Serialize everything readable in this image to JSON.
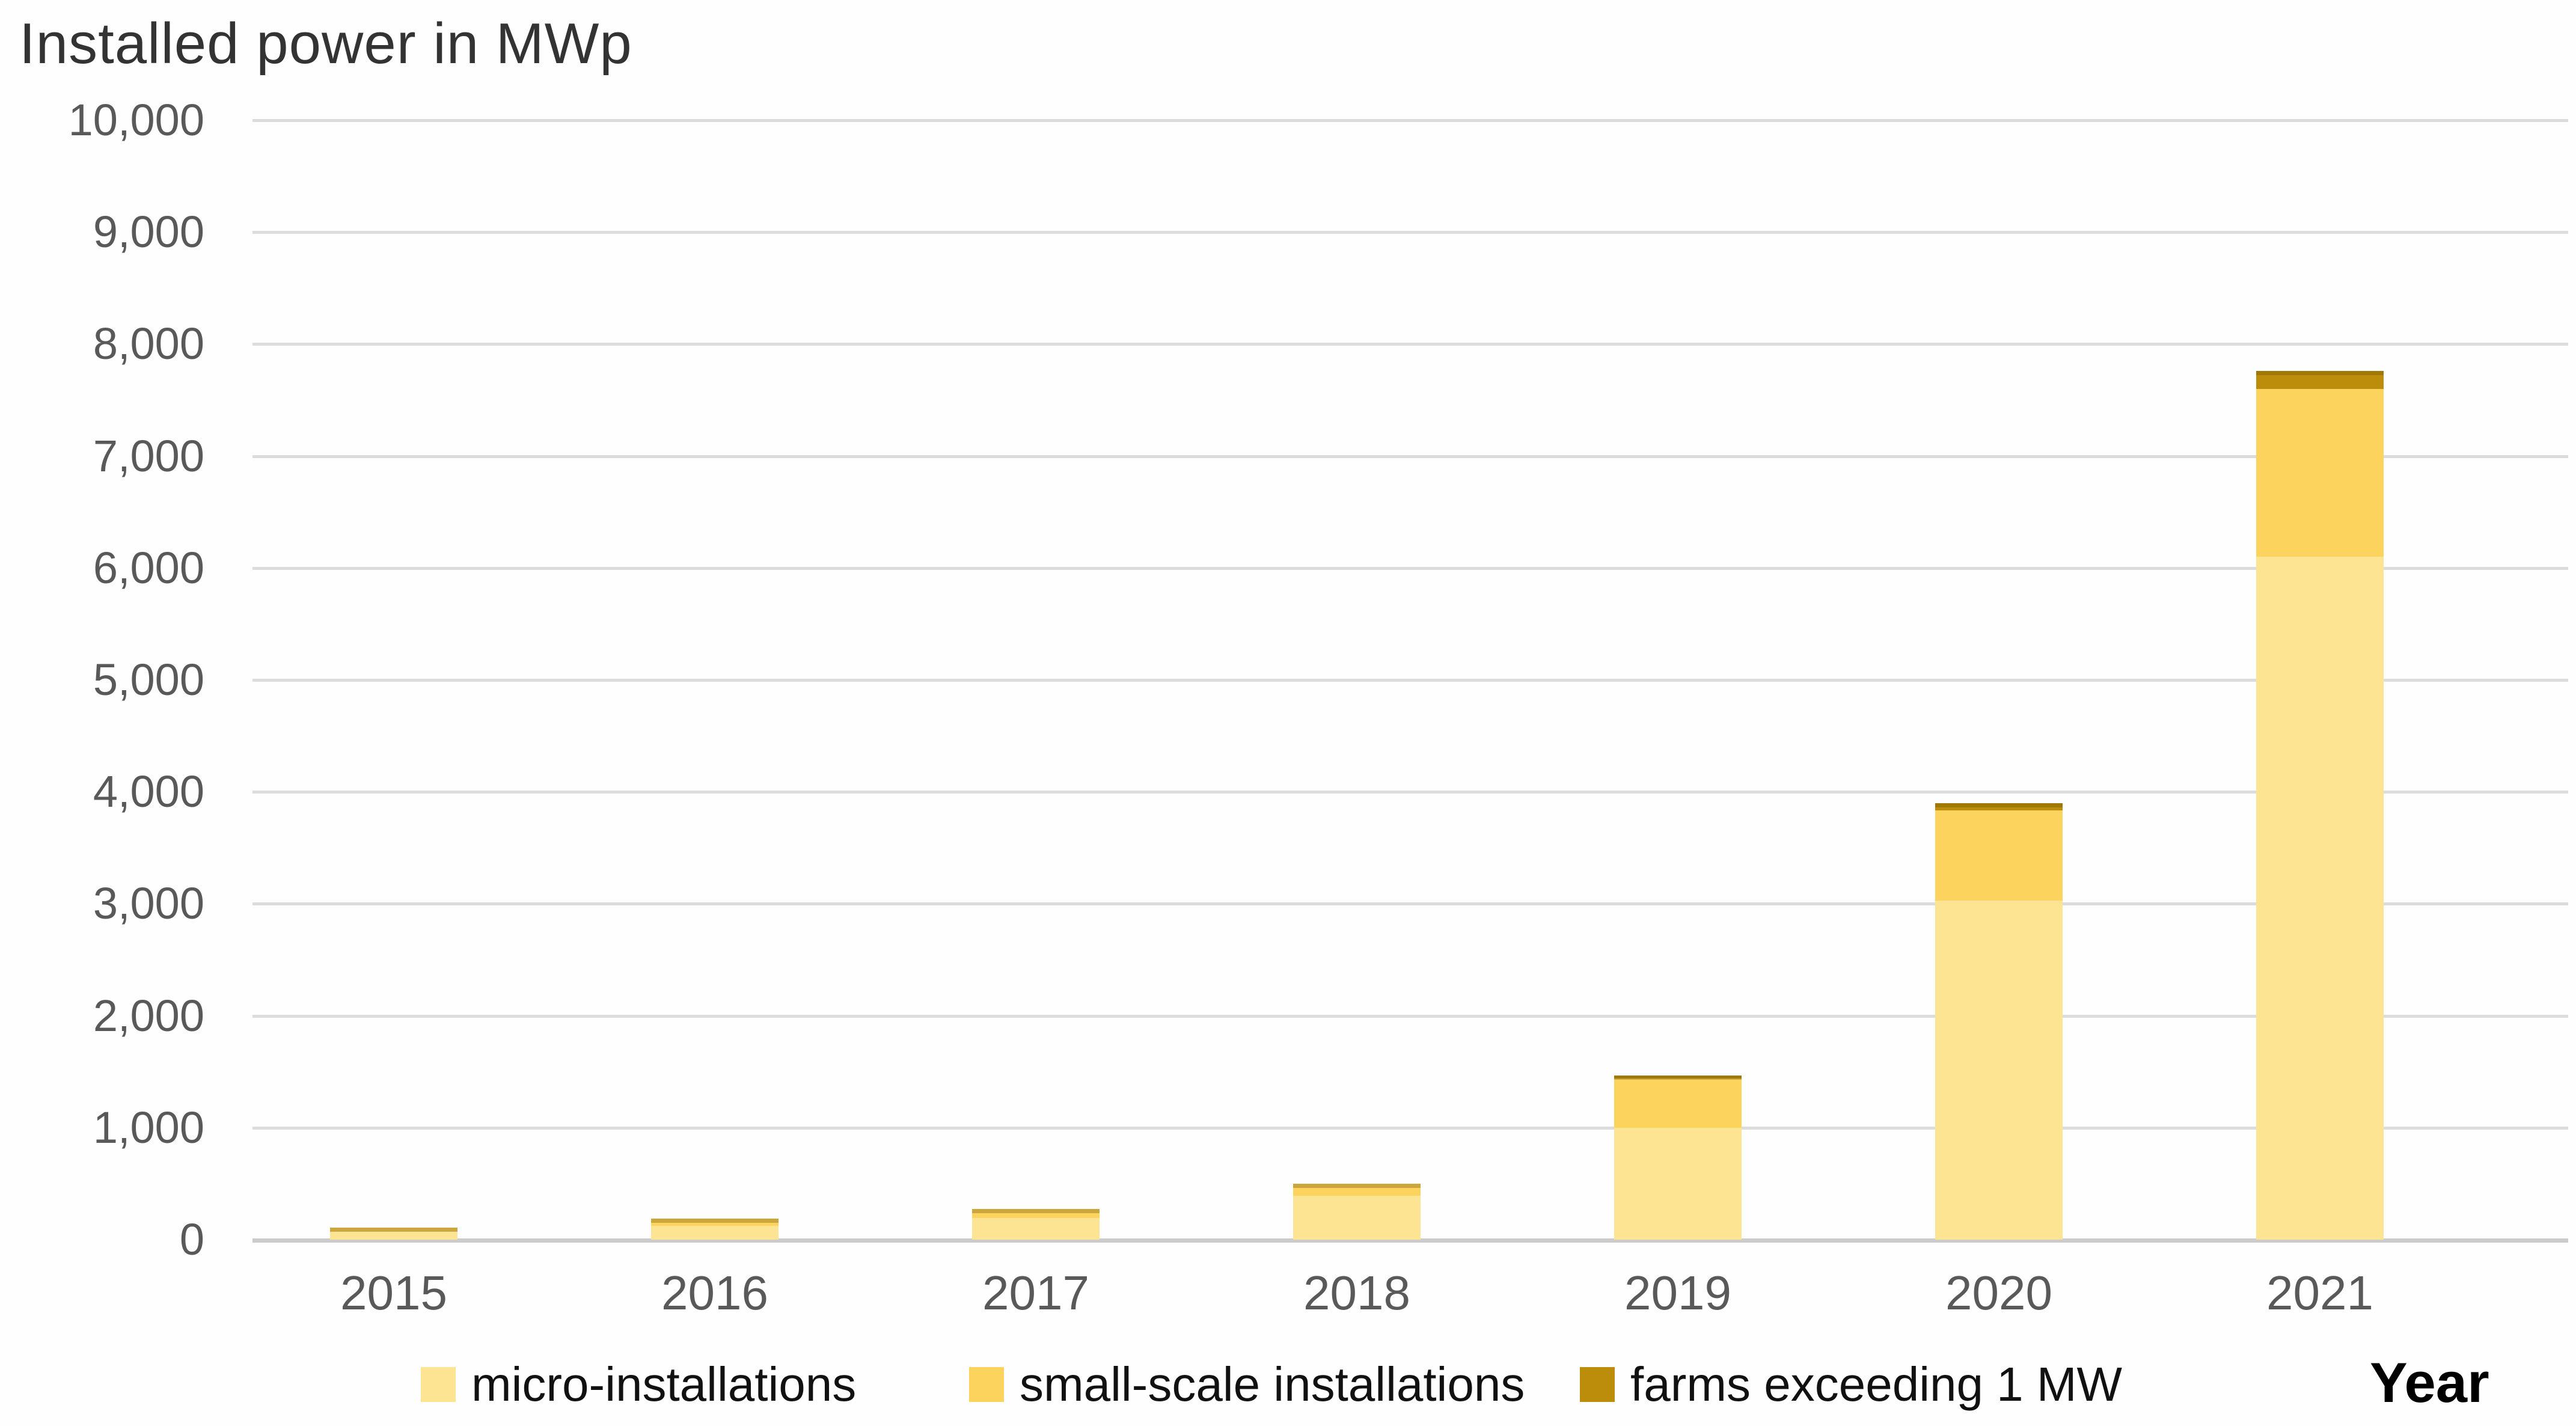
{
  "title": "Installed power in MWp",
  "x_axis_title": "Year",
  "colors": {
    "background": "#fefefe",
    "gridline": "#dcdcdc",
    "zero_axis_line": "#cbcbcb",
    "title_text": "#333333",
    "tick_text": "#595959",
    "legend_text": "#111111"
  },
  "chart_data": {
    "type": "bar",
    "stacked": true,
    "title": "Installed power in MWp",
    "xlabel": "Year",
    "ylabel": "Installed power in MWp",
    "categories": [
      "2015",
      "2016",
      "2017",
      "2018",
      "2019",
      "2020",
      "2021"
    ],
    "series": [
      {
        "name": "micro-installations",
        "color": "#FCE493",
        "values": [
          75,
          125,
          195,
          390,
          1000,
          3030,
          6100
        ]
      },
      {
        "name": "small-scale installations",
        "color": "#FCD35C",
        "values": [
          35,
          65,
          80,
          110,
          440,
          805,
          1500
        ]
      },
      {
        "name": "farms exceeding 1 MW",
        "color": "#BC8D0B",
        "values": [
          0,
          0,
          0,
          0,
          25,
          65,
          160
        ]
      }
    ],
    "stack_totals": [
      110,
      190,
      275,
      500,
      1465,
      3900,
      7760
    ],
    "ylim": [
      0,
      10000
    ],
    "yticks": [
      0,
      1000,
      2000,
      3000,
      4000,
      5000,
      6000,
      7000,
      8000,
      9000,
      10000
    ],
    "ytick_labels": [
      "0",
      "1,000",
      "2,000",
      "3,000",
      "4,000",
      "5,000",
      "6,000",
      "7,000",
      "8,000",
      "9,000",
      "10,000"
    ],
    "grid": true,
    "legend_position": "bottom"
  }
}
